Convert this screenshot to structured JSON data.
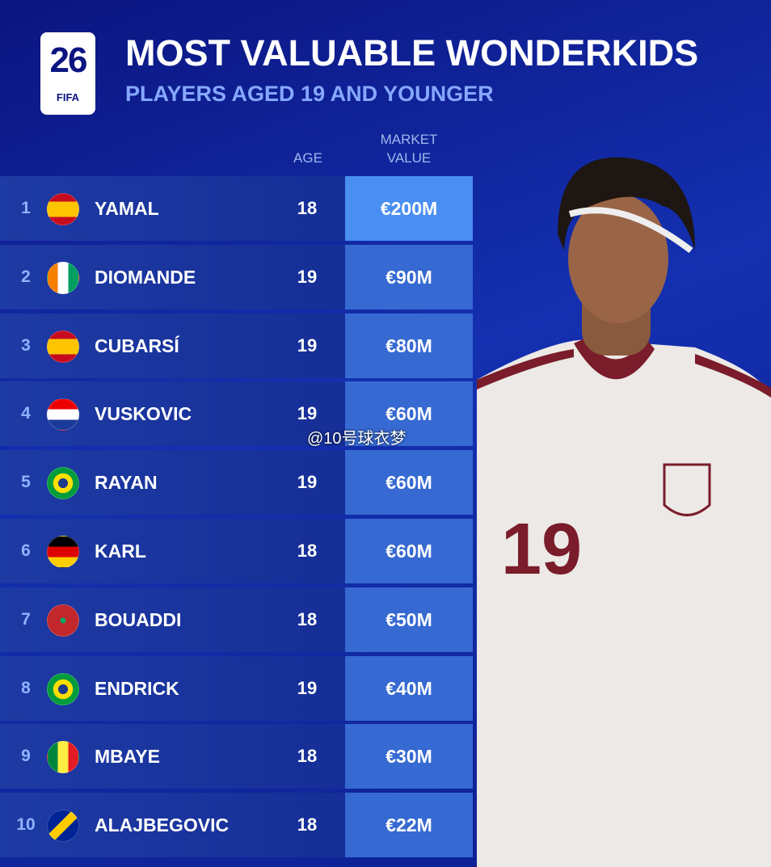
{
  "header": {
    "logo_number": "26",
    "logo_text": "FIFA",
    "title": "MOST VALUABLE WONDERKIDS",
    "subtitle": "PLAYERS AGED 19 AND YOUNGER"
  },
  "table": {
    "columns": {
      "age": "AGE",
      "value": "MARKET VALUE"
    },
    "rows": [
      {
        "rank": 1,
        "name": "YAMAL",
        "age": 18,
        "value": "€200M"
      },
      {
        "rank": 2,
        "name": "DIOMANDE",
        "age": 19,
        "value": "€90M"
      },
      {
        "rank": 3,
        "name": "CUBARSÍ",
        "age": 19,
        "value": "€80M"
      },
      {
        "rank": 4,
        "name": "VUSKOVIC",
        "age": 19,
        "value": "€60M"
      },
      {
        "rank": 5,
        "name": "RAYAN",
        "age": 19,
        "value": "€60M"
      },
      {
        "rank": 6,
        "name": "KARL",
        "age": 18,
        "value": "€60M"
      },
      {
        "rank": 7,
        "name": "BOUADDI",
        "age": 18,
        "value": "€50M"
      },
      {
        "rank": 8,
        "name": "ENDRICK",
        "age": 19,
        "value": "€40M"
      },
      {
        "rank": 9,
        "name": "MBAYE",
        "age": 18,
        "value": "€30M"
      },
      {
        "rank": 10,
        "name": "ALAJBEGOVIC",
        "age": 18,
        "value": "€22M"
      }
    ]
  },
  "player": {
    "shirt_number": "19"
  },
  "watermark": "@10号球衣梦"
}
